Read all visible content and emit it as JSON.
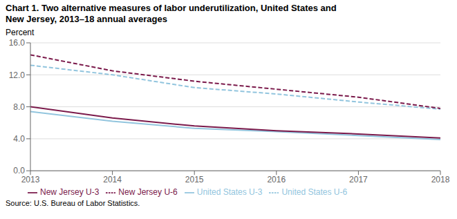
{
  "chart_data": {
    "type": "line",
    "title": "Chart 1.  Two alternative measures of labor underutilization, United States and\nNew Jersey, 2013–18 annual averages",
    "ylabel": "Percent",
    "annotations": [
      "Source: U.S. Bureau of Labor Statistics."
    ],
    "x": [
      2013,
      2014,
      2015,
      2016,
      2017,
      2018
    ],
    "series": [
      {
        "name": "United States  U-3",
        "color": "#92c5de",
        "line_style": "solid",
        "values": [
          7.4,
          6.2,
          5.3,
          4.9,
          4.4,
          3.9
        ]
      },
      {
        "name": "United States  U-6",
        "color": "#92c5de",
        "line_style": "dashed",
        "values": [
          13.2,
          12.0,
          10.4,
          9.6,
          8.6,
          7.7
        ]
      },
      {
        "name": "New Jersey  U-3",
        "color": "#7b1a4b",
        "line_style": "solid",
        "values": [
          8.0,
          6.6,
          5.6,
          5.0,
          4.6,
          4.1
        ]
      },
      {
        "name": "New Jersey  U-6",
        "color": "#7b1a4b",
        "line_style": "dashed",
        "values": [
          14.5,
          12.5,
          11.2,
          10.2,
          9.2,
          7.8
        ]
      }
    ],
    "xlim": [
      2013,
      2018
    ],
    "xticks": [
      2013,
      2014,
      2015,
      2016,
      2017,
      2018
    ],
    "ylim": [
      0.0,
      16.0
    ],
    "yticks": [
      {
        "value": 0.0,
        "label": "0.0"
      },
      {
        "value": 4.0,
        "label": "4.0"
      },
      {
        "value": 8.0,
        "label": "8.0"
      },
      {
        "value": 12.0,
        "label": "12.0"
      },
      {
        "value": 16.0,
        "label": "16.0"
      }
    ],
    "grid": "y",
    "legend": "bottom"
  }
}
